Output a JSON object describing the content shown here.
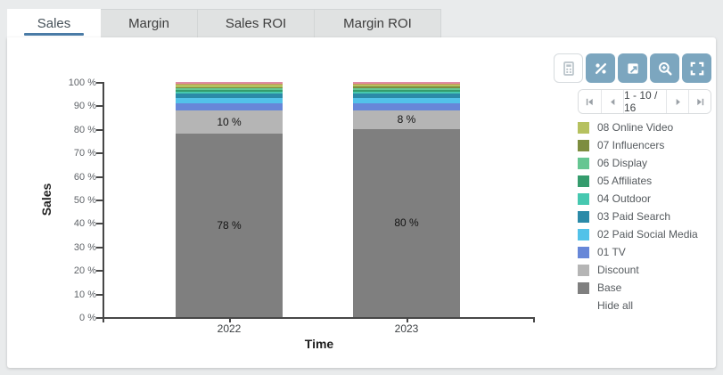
{
  "tabs": [
    {
      "label": "Sales",
      "active": true
    },
    {
      "label": "Margin",
      "active": false
    },
    {
      "label": "Sales ROI",
      "active": false
    },
    {
      "label": "Margin ROI",
      "active": false
    }
  ],
  "toolbar": {
    "buttons": [
      {
        "icon": "calculator-icon",
        "active": false
      },
      {
        "icon": "percent-icon",
        "active": true
      },
      {
        "icon": "export-image-icon",
        "active": true
      },
      {
        "icon": "zoom-in-icon",
        "active": true
      },
      {
        "icon": "fullscreen-icon",
        "active": true
      }
    ]
  },
  "pagination": {
    "label": "1 - 10 / 16",
    "icons": [
      "first-page-icon",
      "previous-page-icon",
      "next-page-icon",
      "last-page-icon"
    ]
  },
  "legend": {
    "items": [
      {
        "label": "08 Online Video",
        "color": "#b6c15f"
      },
      {
        "label": "07 Influencers",
        "color": "#7d8d3f"
      },
      {
        "label": "06 Display",
        "color": "#66c692"
      },
      {
        "label": "05 Affiliates",
        "color": "#359c6d"
      },
      {
        "label": "04 Outdoor",
        "color": "#46c8b0"
      },
      {
        "label": "03 Paid Search",
        "color": "#2b8aa8"
      },
      {
        "label": "02 Paid Social Media",
        "color": "#52c2e9"
      },
      {
        "label": "01 TV",
        "color": "#6787d8"
      },
      {
        "label": "Discount",
        "color": "#b5b5b5"
      },
      {
        "label": "Base",
        "color": "#7f7f7f"
      }
    ],
    "hide_all_label": "Hide all"
  },
  "chart_data": {
    "type": "bar",
    "stacked": true,
    "percent_scale": true,
    "xlabel": "Time",
    "ylabel": "Sales",
    "categories": [
      "2022",
      "2023"
    ],
    "ylim": [
      0,
      100
    ],
    "ytick_labels": [
      "0 %",
      "10 %",
      "20 %",
      "30 %",
      "40 %",
      "50 %",
      "60 %",
      "70 %",
      "80 %",
      "90 %",
      "100 %"
    ],
    "legend_position": "right",
    "series": [
      {
        "name": "Base",
        "color": "#7f7f7f",
        "values": [
          78,
          80
        ],
        "labels": [
          "78 %",
          "80 %"
        ]
      },
      {
        "name": "Discount",
        "color": "#b5b5b5",
        "values": [
          10,
          8
        ],
        "labels": [
          "10 %",
          "8 %"
        ]
      },
      {
        "name": "01 TV",
        "color": "#6787d8",
        "values": [
          3,
          3
        ]
      },
      {
        "name": "02 Paid Social Media",
        "color": "#52c2e9",
        "values": [
          2.2,
          2.2
        ]
      },
      {
        "name": "03 Paid Search",
        "color": "#2b8aa8",
        "values": [
          1.8,
          1.8
        ]
      },
      {
        "name": "04 Outdoor",
        "color": "#46c8b0",
        "values": [
          0.9,
          0.9
        ]
      },
      {
        "name": "05 Affiliates",
        "color": "#359c6d",
        "values": [
          0.6,
          0.7
        ]
      },
      {
        "name": "06 Display",
        "color": "#66c692",
        "values": [
          0.8,
          0.8
        ]
      },
      {
        "name": "07 Influencers",
        "color": "#7d8d3f",
        "values": [
          0.6,
          0.6
        ]
      },
      {
        "name": "08 Online Video",
        "color": "#b6c15f",
        "values": [
          0.8,
          0.8
        ]
      },
      {
        "name": "unlabeled-series-11",
        "color": "#c99257",
        "values": [
          0.7,
          0.6
        ]
      },
      {
        "name": "unlabeled-series-12",
        "color": "#e08ba4",
        "values": [
          0.6,
          0.6
        ]
      }
    ]
  },
  "colors": {
    "tab_underline": "#4a7ba6",
    "toolbar_button": "#7ca6bf",
    "axis": "#474747",
    "page_background": "#e9ebec"
  }
}
